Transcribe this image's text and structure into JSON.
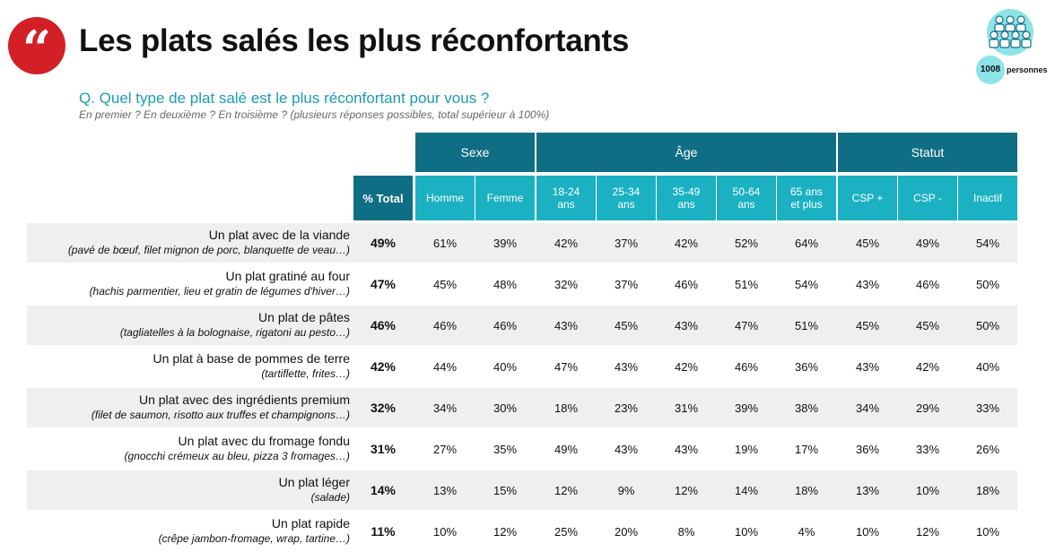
{
  "header": {
    "logo_glyph": "“",
    "title": "Les plats salés les plus réconfortants"
  },
  "badge": {
    "count": "1008",
    "label": "personnes",
    "icon": "people-group-icon"
  },
  "question": "Q. Quel type de plat salé est le plus réconfortant pour vous ?",
  "subquestion": "En premier ? En deuxième ? En troisième ? (plusieurs réponses possibles, total supérieur à 100%)",
  "colors": {
    "dark_teal": "#0f6e83",
    "light_teal": "#1bb1c2",
    "logo_red": "#d31f26",
    "row_shade": "#efefef"
  },
  "chart_data": {
    "type": "table",
    "groups": [
      {
        "label": "Sexe"
      },
      {
        "label": "Âge"
      },
      {
        "label": "Statut"
      }
    ],
    "total_header": "% Total",
    "columns": [
      "Homme",
      "Femme",
      "18-24\nans",
      "25-34\nans",
      "35-49\nans",
      "50-64\nans",
      "65 ans\net plus",
      "CSP +",
      "CSP -",
      "Inactif"
    ],
    "rows": [
      {
        "label": "Un plat avec de la viande",
        "detail": "(pavé de bœuf, filet mignon de porc, blanquette de veau…)",
        "total": "49%",
        "values": [
          "61%",
          "39%",
          "42%",
          "37%",
          "42%",
          "52%",
          "64%",
          "45%",
          "49%",
          "54%"
        ]
      },
      {
        "label": "Un plat gratiné au four",
        "detail": "(hachis parmentier, lieu et gratin de légumes d'hiver…)",
        "total": "47%",
        "values": [
          "45%",
          "48%",
          "32%",
          "37%",
          "46%",
          "51%",
          "54%",
          "43%",
          "46%",
          "50%"
        ]
      },
      {
        "label": "Un plat de pâtes",
        "detail": "(tagliatelles à la bolognaise, rigatoni au pesto…)",
        "total": "46%",
        "values": [
          "46%",
          "46%",
          "43%",
          "45%",
          "43%",
          "47%",
          "51%",
          "45%",
          "45%",
          "50%"
        ]
      },
      {
        "label": "Un plat à base de pommes de terre",
        "detail": "(tartiflette, frites…)",
        "total": "42%",
        "values": [
          "44%",
          "40%",
          "47%",
          "43%",
          "42%",
          "46%",
          "36%",
          "43%",
          "42%",
          "40%"
        ]
      },
      {
        "label": "Un plat avec des ingrédients premium",
        "detail": "(filet de saumon, risotto aux truffes et champignons…)",
        "total": "32%",
        "values": [
          "34%",
          "30%",
          "18%",
          "23%",
          "31%",
          "39%",
          "38%",
          "34%",
          "29%",
          "33%"
        ]
      },
      {
        "label": "Un plat avec du fromage fondu",
        "detail": "(gnocchi crémeux au bleu, pizza 3 fromages…)",
        "total": "31%",
        "values": [
          "27%",
          "35%",
          "49%",
          "43%",
          "43%",
          "19%",
          "17%",
          "36%",
          "33%",
          "26%"
        ]
      },
      {
        "label": "Un plat léger",
        "detail": "(salade)",
        "total": "14%",
        "values": [
          "13%",
          "15%",
          "12%",
          "9%",
          "12%",
          "14%",
          "18%",
          "13%",
          "10%",
          "18%"
        ]
      },
      {
        "label": "Un plat rapide",
        "detail": "(crêpe jambon-fromage, wrap, tartine…)",
        "total": "11%",
        "values": [
          "10%",
          "12%",
          "25%",
          "20%",
          "8%",
          "10%",
          "4%",
          "10%",
          "12%",
          "10%"
        ]
      }
    ]
  }
}
